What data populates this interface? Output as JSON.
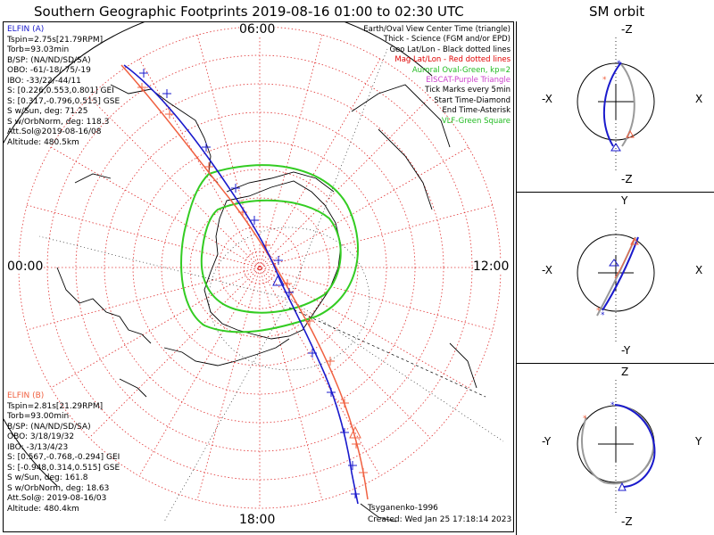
{
  "title": "Southern Geographic Footprints 2019-08-16 01:00 to 02:30 UTC",
  "sm_title": "SM orbit",
  "hours": {
    "top": "06:00",
    "left": "00:00",
    "right": "12:00",
    "bottom": "18:00"
  },
  "elfin_a": {
    "name": "ELFIN (A)",
    "color": "#1a1acc",
    "lines": [
      "Tspin=2.75s[21.79RPM]",
      "Torb=93.03min",
      "B/SP: (NA/ND/SD/SA)",
      "OBO: -61/-18/-75/-19",
      "IBO: -33/22/-44/11",
      "S: [0.226,0.553,0.801] GEI",
      "S: [0.317,-0.796,0.515] GSE",
      "S w/Sun, deg: 71.25",
      "S w/OrbNorm, deg: 118.3",
      "Att.Sol@2019-08-16/08",
      "Altitude: 480.5km"
    ]
  },
  "elfin_b": {
    "name": "ELFIN (B)",
    "color": "#f06040",
    "lines": [
      "Tspin=2.81s[21.29RPM]",
      "Torb=93.00min",
      "B/SP: (NA/ND/SD/SA)",
      "OBO: 3/18/19/32",
      "IBO: -3/13/4/23",
      "S: [0.567,-0.768,-0.294] GEI",
      "S: [-0.948,0.314,0.515] GSE",
      "S w/Sun, deg: 161.8",
      "S w/OrbNorm, deg: 18.63",
      "Att.Sol@: 2019-08-16/03",
      "Altitude: 480.4km"
    ]
  },
  "legend": [
    {
      "text": "Earth/Oval View Center Time (triangle)",
      "color": "#000000"
    },
    {
      "text": "Thick - Science (FGM and/or EPD)",
      "color": "#000000"
    },
    {
      "text": "Geo Lat/Lon - Black dotted lines",
      "color": "#000000"
    },
    {
      "text": "Mag Lat/Lon - Red dotted lines",
      "color": "#e00000"
    },
    {
      "text": "Auroral Oval-Green, kp=2",
      "color": "#22bb22"
    },
    {
      "text": "EISCAT-Purple Triangle",
      "color": "#cc44cc"
    },
    {
      "text": "Tick Marks every 5min",
      "color": "#000000"
    },
    {
      "text": "Start Time-Diamond",
      "color": "#000000"
    },
    {
      "text": "End Time-Asterisk",
      "color": "#000000"
    },
    {
      "text": "VLF-Green Square",
      "color": "#22bb22"
    }
  ],
  "footer": {
    "model": "Tsyganenko-1996",
    "created": "Created: Wed Jan 25 17:18:14 2023"
  },
  "panels": [
    {
      "top": "-Z",
      "bottom": "-Z",
      "left": "-X",
      "right": "X"
    },
    {
      "top": "Y",
      "bottom": "-Y",
      "left": "-X",
      "right": "X"
    },
    {
      "top": "Z",
      "bottom": "-Z",
      "left": "-Y",
      "right": "Y"
    }
  ],
  "colors": {
    "mag_grid": "#e03030",
    "geo_grid": "#000000",
    "oval": "#33cc22",
    "coast": "#000000"
  }
}
